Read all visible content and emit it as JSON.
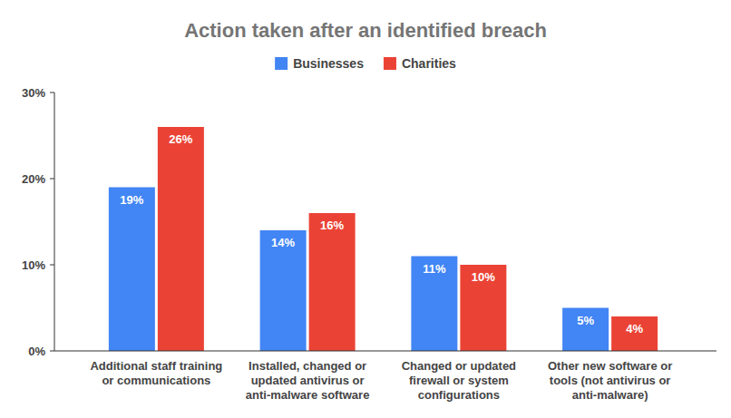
{
  "chart_data": {
    "type": "bar",
    "title": "Action taken after an identified breach",
    "categories": [
      "Additional staff training or communications",
      "Installed, changed or updated antivirus or anti-malware software",
      "Changed or updated firewall or system configurations",
      "Other new software or tools (not antivirus or anti-malware)"
    ],
    "series": [
      {
        "name": "Businesses",
        "color": "#4285f4",
        "values": [
          19,
          14,
          11,
          5
        ],
        "value_labels": [
          "19%",
          "14%",
          "11%",
          "5%"
        ]
      },
      {
        "name": "Charities",
        "color": "#ea4335",
        "values": [
          26,
          16,
          10,
          4
        ],
        "value_labels": [
          "26%",
          "16%",
          "10%",
          "4%"
        ]
      }
    ],
    "ylim": [
      0,
      30
    ],
    "yticks": [
      {
        "value": 0,
        "label": "0%"
      },
      {
        "value": 10,
        "label": "10%"
      },
      {
        "value": 20,
        "label": "20%"
      },
      {
        "value": 30,
        "label": "30%"
      }
    ],
    "grid": false,
    "legend": "top",
    "data_labels": true
  }
}
